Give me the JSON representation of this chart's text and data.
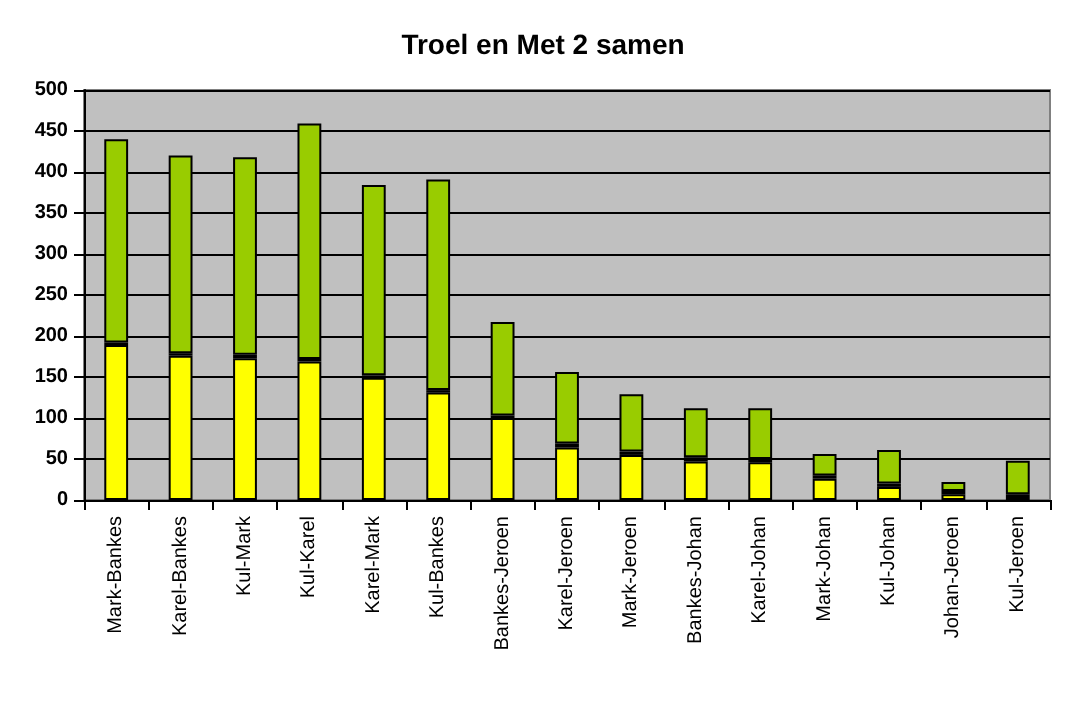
{
  "chart_data": {
    "type": "bar",
    "title": "Troel en Met 2 samen",
    "stacked": true,
    "categories": [
      "Mark-Bankes",
      "Karel-Bankes",
      "Kul-Mark",
      "Kul-Karel",
      "Karel-Mark",
      "Kul-Bankes",
      "Bankes-Jeroen",
      "Karel-Jeroen",
      "Mark-Jeroen",
      "Bankes-Johan",
      "Karel-Johan",
      "Mark-Johan",
      "Kul-Johan",
      "Johan-Jeroen",
      "Kul-Jeroen"
    ],
    "series": [
      {
        "color": "#ffff00",
        "values": [
          189,
          176,
          173,
          169,
          149,
          131,
          100,
          64,
          55,
          47,
          46,
          26,
          16,
          7,
          null
        ]
      },
      {
        "color": "#000000",
        "values": [
          3,
          3,
          4,
          3,
          3,
          3,
          3,
          5,
          4,
          5,
          4,
          4,
          4,
          4,
          7
        ]
      },
      {
        "color": "#99cc00",
        "values": [
          248,
          241,
          241,
          287,
          232,
          257,
          114,
          87,
          70,
          60,
          62,
          26,
          41,
          11,
          41
        ]
      }
    ],
    "ylim": [
      0,
      500
    ],
    "yticks": [
      0,
      50,
      100,
      150,
      200,
      250,
      300,
      350,
      400,
      450,
      500
    ],
    "grid": "y"
  }
}
